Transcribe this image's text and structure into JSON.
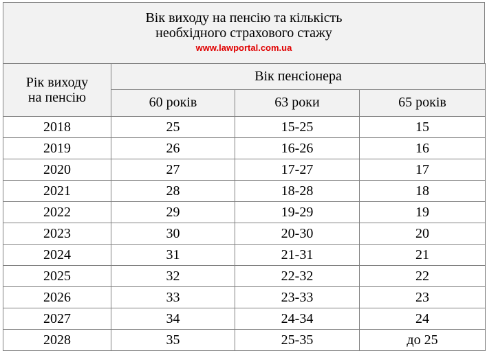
{
  "header": {
    "title_line1": "Вік виходу на пенсію та кількість",
    "title_line2": "необхідного страхового стажу",
    "site": "www.lawportal.com.ua",
    "site_color": "#e00000"
  },
  "table": {
    "col_year_line1": "Рік виходу",
    "col_year_line2": "на пенсію",
    "group_header": "Вік пенсіонера",
    "sub_headers": [
      "60 років",
      "63 роки",
      "65 років"
    ],
    "rows": [
      {
        "year": "2018",
        "a60": "25",
        "a63": "15-25",
        "a65": "15"
      },
      {
        "year": "2019",
        "a60": "26",
        "a63": "16-26",
        "a65": "16"
      },
      {
        "year": "2020",
        "a60": "27",
        "a63": "17-27",
        "a65": "17"
      },
      {
        "year": "2021",
        "a60": "28",
        "a63": "18-28",
        "a65": "18"
      },
      {
        "year": "2022",
        "a60": "29",
        "a63": "19-29",
        "a65": "19"
      },
      {
        "year": "2023",
        "a60": "30",
        "a63": "20-30",
        "a65": "20"
      },
      {
        "year": "2024",
        "a60": "31",
        "a63": "21-31",
        "a65": "21"
      },
      {
        "year": "2025",
        "a60": "32",
        "a63": "22-32",
        "a65": "22"
      },
      {
        "year": "2026",
        "a60": "33",
        "a63": "23-33",
        "a65": "23"
      },
      {
        "year": "2027",
        "a60": "34",
        "a63": "24-34",
        "a65": "24"
      },
      {
        "year": "2028",
        "a60": "35",
        "a63": "25-35",
        "a65": "до 25"
      }
    ]
  },
  "colors": {
    "header_bg": "#f2f2f2",
    "border": "#7f7f7f"
  }
}
